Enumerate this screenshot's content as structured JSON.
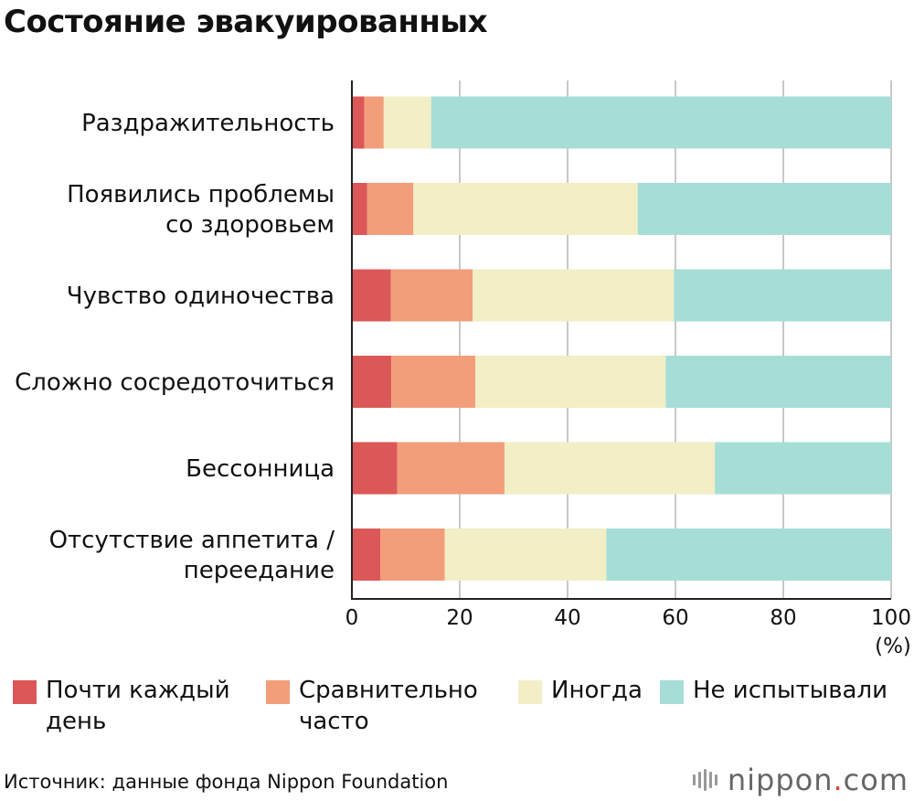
{
  "title": "Состояние эвакуированных",
  "source": "Источник: данные фонда Nippon Foundation",
  "brand": {
    "name": "nippon",
    "dot": ".",
    "tld": "com"
  },
  "chart_data": {
    "type": "bar",
    "orientation": "horizontal",
    "stacked": true,
    "title": "Состояние эвакуированных",
    "xlabel": "(%)",
    "xlim": [
      0,
      100
    ],
    "xticks": [
      0,
      20,
      40,
      60,
      80,
      100
    ],
    "grid": true,
    "categories": [
      [
        "Раздражительность"
      ],
      [
        "Появились проблемы",
        "со здоровьем"
      ],
      [
        "Чувство одиночества"
      ],
      [
        "Сложно сосредоточиться"
      ],
      [
        "Бессонница"
      ],
      [
        "Отсутствие аппетита /",
        "переедание"
      ]
    ],
    "series": [
      {
        "name": [
          "Почти каждый",
          "день"
        ],
        "color": "#dc5858",
        "values": [
          2.3,
          2.8,
          7.2,
          7.3,
          8.4,
          5.3
        ]
      },
      {
        "name": [
          "Сравнительно",
          "часто"
        ],
        "color": "#f29e7b",
        "values": [
          3.6,
          8.6,
          15.2,
          15.6,
          19.9,
          11.9
        ]
      },
      {
        "name": [
          "Иногда"
        ],
        "color": "#f2eec6",
        "values": [
          8.8,
          41.6,
          37.3,
          35.3,
          39.0,
          30.0
        ]
      },
      {
        "name": [
          "Не испытывали"
        ],
        "color": "#a6ded6",
        "values": [
          85.3,
          47.0,
          40.3,
          41.8,
          32.7,
          52.8
        ]
      }
    ],
    "legend_position": "bottom"
  }
}
